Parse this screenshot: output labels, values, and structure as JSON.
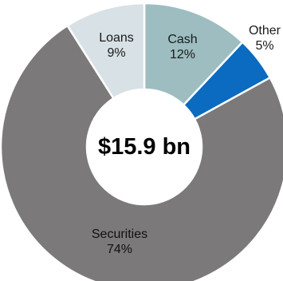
{
  "chart_data": {
    "type": "pie",
    "donut": true,
    "center_label": "$15.9 bn",
    "categories": [
      "Cash",
      "Other",
      "Securities",
      "Loans"
    ],
    "values": [
      12,
      5,
      74,
      9
    ],
    "value_labels": [
      "12%",
      "5%",
      "74%",
      "9%"
    ],
    "colors": [
      "#9dbdc0",
      "#0a6bc0",
      "#7b7979",
      "#d8e1e5"
    ],
    "label_colors": [
      "#1a1a1a",
      "#1a1a1a",
      "#111111",
      "#1a1a1a"
    ],
    "start_angle_deg": 0,
    "direction": "clockwise",
    "legend": "none"
  }
}
